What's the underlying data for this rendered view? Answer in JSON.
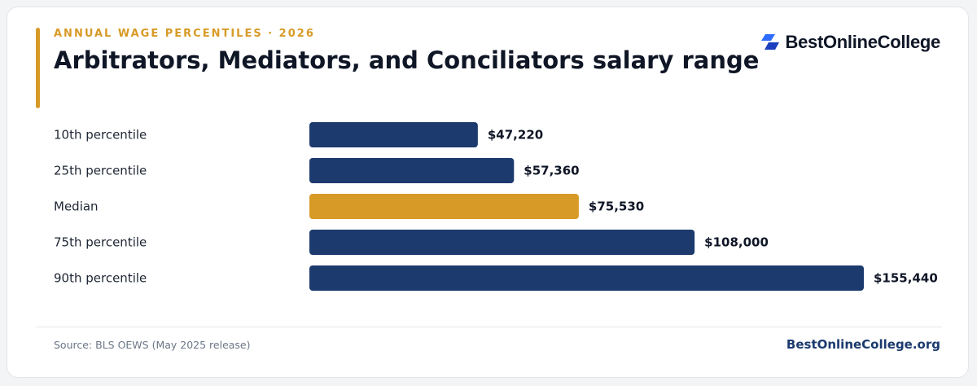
{
  "header": {
    "eyebrow": "ANNUAL WAGE PERCENTILES · 2026",
    "title": "Arbitrators, Mediators, and Conciliators salary range"
  },
  "logo": {
    "text": "BestOnlineCollege",
    "icon": "logo-mark-icon"
  },
  "footer": {
    "source": "Source: BLS OEWS (May 2025 release)",
    "site": "BestOnlineCollege.org"
  },
  "colors": {
    "accent": "#d89a26",
    "bar": "#1c3a6e",
    "highlight": "#d89a26",
    "label_text": "#1d2433",
    "value_text": "#0f1626"
  },
  "chart_data": {
    "type": "bar",
    "orientation": "horizontal",
    "categories": [
      "10th percentile",
      "25th percentile",
      "Median",
      "75th percentile",
      "90th percentile"
    ],
    "values": [
      47220,
      57360,
      75530,
      108000,
      155440
    ],
    "value_labels": [
      "$47,220",
      "$57,360",
      "$75,530",
      "$108,000",
      "$155,440"
    ],
    "highlight_category": "Median",
    "xlim": [
      0,
      155440
    ],
    "grid": false,
    "legend": "none"
  }
}
